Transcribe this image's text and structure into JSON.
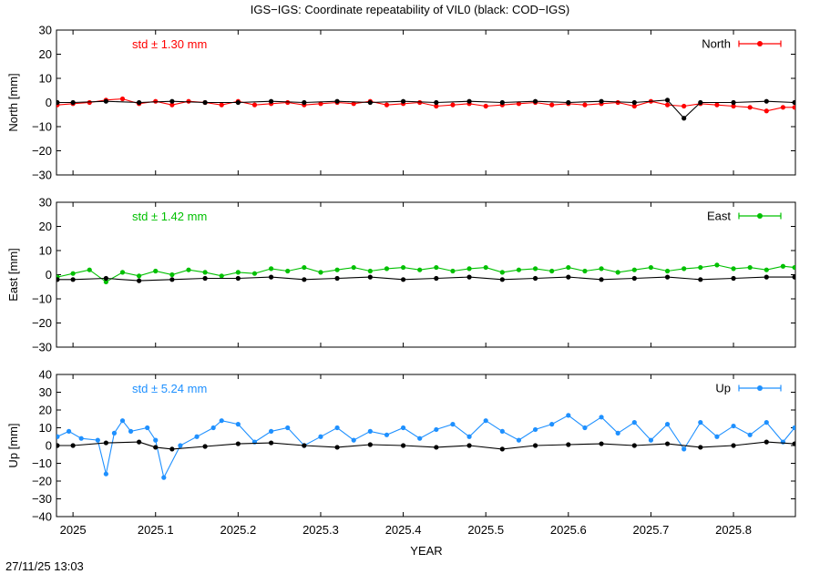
{
  "figure": {
    "title": "IGS−IGS: Coordinate repeatability of VIL0 (black: COD−IGS)",
    "xlabel": "YEAR",
    "timestamp": "27/11/25 13:03",
    "colors": {
      "reference": "#000000",
      "axis": "#000000"
    }
  },
  "chart_data": [
    {
      "type": "line",
      "id": "north",
      "ylabel": "North [mm]",
      "ylim": [
        -30,
        30
      ],
      "yticks": [
        -30,
        -20,
        -10,
        0,
        10,
        20,
        30
      ],
      "xlim": [
        2024.98,
        2025.875
      ],
      "xticks": [
        2025,
        2025.1,
        2025.2,
        2025.3,
        2025.4,
        2025.5,
        2025.6,
        2025.7,
        2025.8
      ],
      "xticklabels": [
        "2025",
        "2025.1",
        "2025.2",
        "2025.3",
        "2025.4",
        "2025.5",
        "2025.6",
        "2025.7",
        "2025.8"
      ],
      "stat_text": "std ± 1.30 mm",
      "legend": "North",
      "legend_position": "top-right",
      "color": "#ff0000",
      "series": [
        {
          "name": "North",
          "color": "#ff0000",
          "x": [
            2024.981,
            2025.0,
            2025.02,
            2025.04,
            2025.06,
            2025.08,
            2025.1,
            2025.12,
            2025.14,
            2025.16,
            2025.18,
            2025.2,
            2025.22,
            2025.24,
            2025.26,
            2025.28,
            2025.3,
            2025.32,
            2025.34,
            2025.36,
            2025.38,
            2025.4,
            2025.42,
            2025.44,
            2025.46,
            2025.48,
            2025.5,
            2025.52,
            2025.54,
            2025.56,
            2025.58,
            2025.6,
            2025.62,
            2025.64,
            2025.66,
            2025.68,
            2025.7,
            2025.72,
            2025.74,
            2025.76,
            2025.78,
            2025.8,
            2025.82,
            2025.84,
            2025.86,
            2025.874
          ],
          "values": [
            -1,
            -0.5,
            0,
            1,
            1.5,
            -0.5,
            0.5,
            -1,
            0.5,
            0,
            -1,
            0.5,
            -1,
            -0.5,
            0,
            -1,
            -0.5,
            0,
            -0.5,
            0.5,
            -1,
            -0.5,
            0,
            -1.5,
            -1,
            -0.5,
            -1.5,
            -1,
            -0.5,
            0,
            -1,
            -0.5,
            -1,
            -0.5,
            0,
            -1.5,
            0.5,
            -1,
            -1.5,
            -0.5,
            -1,
            -1.5,
            -2,
            -3.5,
            -2,
            -2
          ]
        },
        {
          "name": "COD−IGS North",
          "color": "#000000",
          "x": [
            2024.981,
            2025.0,
            2025.04,
            2025.08,
            2025.12,
            2025.16,
            2025.2,
            2025.24,
            2025.28,
            2025.32,
            2025.36,
            2025.4,
            2025.44,
            2025.48,
            2025.52,
            2025.56,
            2025.6,
            2025.64,
            2025.68,
            2025.72,
            2025.74,
            2025.76,
            2025.8,
            2025.84,
            2025.874
          ],
          "values": [
            0,
            0,
            0.5,
            0,
            0.5,
            0,
            0,
            0.5,
            0,
            0.5,
            0,
            0.5,
            0,
            0.5,
            0,
            0.5,
            0,
            0.5,
            0,
            1,
            -6.5,
            0,
            0,
            0.5,
            0
          ]
        }
      ]
    },
    {
      "type": "line",
      "id": "east",
      "ylabel": "East [mm]",
      "ylim": [
        -30,
        30
      ],
      "yticks": [
        -30,
        -20,
        -10,
        0,
        10,
        20,
        30
      ],
      "xlim": [
        2024.98,
        2025.875
      ],
      "xticks": [
        2025,
        2025.1,
        2025.2,
        2025.3,
        2025.4,
        2025.5,
        2025.6,
        2025.7,
        2025.8
      ],
      "xticklabels": [
        "2025",
        "2025.1",
        "2025.2",
        "2025.3",
        "2025.4",
        "2025.5",
        "2025.6",
        "2025.7",
        "2025.8"
      ],
      "stat_text": "std ± 1.42 mm",
      "legend": "East",
      "legend_position": "top-right",
      "color": "#00c000",
      "series": [
        {
          "name": "East",
          "color": "#00c000",
          "x": [
            2024.981,
            2025.0,
            2025.02,
            2025.04,
            2025.06,
            2025.08,
            2025.1,
            2025.12,
            2025.14,
            2025.16,
            2025.18,
            2025.2,
            2025.22,
            2025.24,
            2025.26,
            2025.28,
            2025.3,
            2025.32,
            2025.34,
            2025.36,
            2025.38,
            2025.4,
            2025.42,
            2025.44,
            2025.46,
            2025.48,
            2025.5,
            2025.52,
            2025.54,
            2025.56,
            2025.58,
            2025.6,
            2025.62,
            2025.64,
            2025.66,
            2025.68,
            2025.7,
            2025.72,
            2025.74,
            2025.76,
            2025.78,
            2025.8,
            2025.82,
            2025.84,
            2025.86,
            2025.874
          ],
          "values": [
            -1,
            0.5,
            2,
            -3,
            1,
            -0.5,
            1.5,
            0,
            2,
            1,
            -0.5,
            1,
            0.5,
            2.5,
            1.5,
            3,
            1,
            2,
            3,
            1.5,
            2.5,
            3,
            2,
            3,
            1.5,
            2.5,
            3,
            1,
            2,
            2.5,
            1.5,
            3,
            1.5,
            2.5,
            1,
            2,
            3,
            1.5,
            2.5,
            3,
            4,
            2.5,
            3,
            2,
            3.5,
            3
          ]
        },
        {
          "name": "COD−IGS East",
          "color": "#000000",
          "x": [
            2024.981,
            2025.0,
            2025.04,
            2025.08,
            2025.12,
            2025.16,
            2025.2,
            2025.24,
            2025.28,
            2025.32,
            2025.36,
            2025.4,
            2025.44,
            2025.48,
            2025.52,
            2025.56,
            2025.6,
            2025.64,
            2025.68,
            2025.72,
            2025.76,
            2025.8,
            2025.84,
            2025.874
          ],
          "values": [
            -2,
            -2,
            -1.5,
            -2.5,
            -2,
            -1.5,
            -1.5,
            -1,
            -2,
            -1.5,
            -1,
            -2,
            -1.5,
            -1,
            -2,
            -1.5,
            -1,
            -2,
            -1.5,
            -1,
            -2,
            -1.5,
            -1,
            -1
          ]
        }
      ]
    },
    {
      "type": "line",
      "id": "up",
      "ylabel": "Up [mm]",
      "ylim": [
        -40,
        40
      ],
      "yticks": [
        -40,
        -30,
        -20,
        -10,
        0,
        10,
        20,
        30,
        40
      ],
      "xlim": [
        2024.98,
        2025.875
      ],
      "xticks": [
        2025,
        2025.1,
        2025.2,
        2025.3,
        2025.4,
        2025.5,
        2025.6,
        2025.7,
        2025.8
      ],
      "xticklabels": [
        "2025",
        "2025.1",
        "2025.2",
        "2025.3",
        "2025.4",
        "2025.5",
        "2025.6",
        "2025.7",
        "2025.8"
      ],
      "stat_text": "std ± 5.24 mm",
      "legend": "Up",
      "legend_position": "top-right",
      "color": "#1e90ff",
      "series": [
        {
          "name": "Up",
          "color": "#1e90ff",
          "x": [
            2024.981,
            2024.995,
            2025.01,
            2025.03,
            2025.04,
            2025.05,
            2025.06,
            2025.07,
            2025.09,
            2025.1,
            2025.11,
            2025.13,
            2025.15,
            2025.17,
            2025.18,
            2025.2,
            2025.22,
            2025.24,
            2025.26,
            2025.28,
            2025.3,
            2025.32,
            2025.34,
            2025.36,
            2025.38,
            2025.4,
            2025.42,
            2025.44,
            2025.46,
            2025.48,
            2025.5,
            2025.52,
            2025.54,
            2025.56,
            2025.58,
            2025.6,
            2025.62,
            2025.64,
            2025.66,
            2025.68,
            2025.7,
            2025.72,
            2025.74,
            2025.76,
            2025.78,
            2025.8,
            2025.82,
            2025.84,
            2025.86,
            2025.874
          ],
          "values": [
            5,
            8,
            4,
            3,
            -16,
            7,
            14,
            8,
            10,
            3,
            -18,
            0,
            5,
            10,
            14,
            12,
            2,
            8,
            10,
            0,
            5,
            10,
            3,
            8,
            6,
            10,
            4,
            9,
            12,
            5,
            14,
            8,
            3,
            9,
            12,
            17,
            10,
            16,
            7,
            13,
            3,
            12,
            -2,
            13,
            5,
            11,
            6,
            13,
            2,
            10
          ]
        },
        {
          "name": "COD−IGS Up",
          "color": "#000000",
          "x": [
            2024.981,
            2025.0,
            2025.04,
            2025.08,
            2025.1,
            2025.12,
            2025.16,
            2025.2,
            2025.24,
            2025.28,
            2025.32,
            2025.36,
            2025.4,
            2025.44,
            2025.48,
            2025.52,
            2025.56,
            2025.6,
            2025.64,
            2025.68,
            2025.72,
            2025.76,
            2025.8,
            2025.84,
            2025.874
          ],
          "values": [
            0,
            0,
            1.5,
            2,
            -1,
            -2,
            -0.5,
            1,
            1.5,
            0,
            -1,
            0.5,
            0,
            -1,
            0,
            -2,
            0,
            0.5,
            1,
            0,
            1,
            -1,
            0,
            2,
            1
          ]
        }
      ]
    }
  ]
}
